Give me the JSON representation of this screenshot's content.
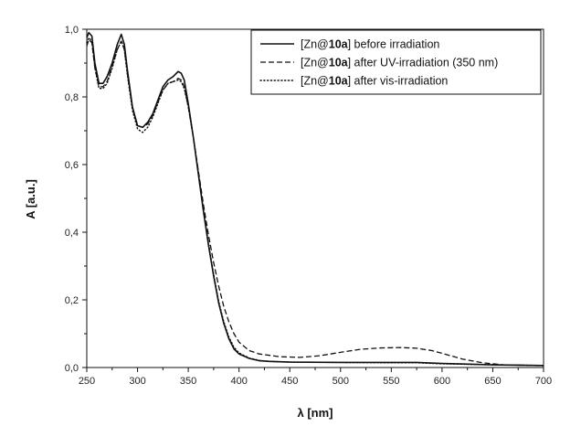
{
  "chart_data": {
    "type": "line",
    "title": "",
    "xlabel": "λ [nm]",
    "ylabel": "A [a.u.]",
    "xlim": [
      250,
      700
    ],
    "ylim": [
      0.0,
      1.0
    ],
    "xticks": [
      250,
      300,
      350,
      400,
      450,
      500,
      550,
      600,
      650,
      700
    ],
    "xtick_labels": [
      "250",
      "300",
      "350",
      "400",
      "450",
      "500",
      "550",
      "600",
      "650",
      "700"
    ],
    "yticks": [
      0.0,
      0.2,
      0.4,
      0.6,
      0.8,
      1.0
    ],
    "ytick_labels": [
      "0,0",
      "0,2",
      "0,4",
      "0,6",
      "0,8",
      "1,0"
    ],
    "grid": false,
    "legend_position": "top-right",
    "series": [
      {
        "name": "[Zn@10a] before irradiation",
        "legend_prefix": "[Zn@",
        "legend_bold": "10a",
        "legend_suffix": "] before irradiation",
        "style": "solid",
        "x": [
          250,
          252,
          255,
          258,
          262,
          266,
          270,
          275,
          280,
          284,
          287,
          290,
          295,
          300,
          305,
          310,
          315,
          320,
          325,
          330,
          335,
          340,
          343,
          346,
          350,
          355,
          360,
          365,
          370,
          375,
          380,
          385,
          390,
          395,
          400,
          410,
          420,
          430,
          450,
          500,
          550,
          575,
          600,
          650,
          700
        ],
        "y": [
          0.975,
          0.99,
          0.98,
          0.9,
          0.84,
          0.84,
          0.86,
          0.9,
          0.955,
          0.985,
          0.955,
          0.88,
          0.77,
          0.715,
          0.71,
          0.725,
          0.75,
          0.79,
          0.83,
          0.85,
          0.86,
          0.875,
          0.87,
          0.85,
          0.78,
          0.68,
          0.57,
          0.46,
          0.36,
          0.27,
          0.19,
          0.13,
          0.085,
          0.055,
          0.04,
          0.027,
          0.02,
          0.018,
          0.016,
          0.015,
          0.015,
          0.015,
          0.012,
          0.008,
          0.006
        ]
      },
      {
        "name": "[Zn@10a] after UV-irradiation (350 nm)",
        "legend_prefix": "[Zn@",
        "legend_bold": "10a",
        "legend_suffix": "] after UV-irradiation (350 nm)",
        "style": "dashed",
        "x": [
          250,
          252,
          255,
          258,
          262,
          266,
          270,
          275,
          280,
          284,
          287,
          290,
          295,
          300,
          305,
          310,
          315,
          320,
          325,
          330,
          335,
          340,
          343,
          346,
          350,
          355,
          360,
          365,
          370,
          375,
          380,
          385,
          390,
          395,
          400,
          410,
          420,
          440,
          460,
          480,
          500,
          520,
          540,
          560,
          575,
          590,
          600,
          620,
          640,
          660,
          700
        ],
        "y": [
          0.95,
          0.97,
          0.96,
          0.885,
          0.83,
          0.83,
          0.845,
          0.89,
          0.94,
          0.965,
          0.94,
          0.87,
          0.765,
          0.715,
          0.71,
          0.72,
          0.745,
          0.785,
          0.82,
          0.84,
          0.845,
          0.855,
          0.85,
          0.83,
          0.77,
          0.68,
          0.58,
          0.48,
          0.39,
          0.31,
          0.24,
          0.18,
          0.135,
          0.1,
          0.075,
          0.05,
          0.04,
          0.032,
          0.03,
          0.035,
          0.045,
          0.054,
          0.058,
          0.059,
          0.057,
          0.05,
          0.042,
          0.025,
          0.014,
          0.008,
          0.005
        ]
      },
      {
        "name": "[Zn@10a] after vis-irradiation",
        "legend_prefix": "[Zn@",
        "legend_bold": "10a",
        "legend_suffix": "] after vis-irradiation",
        "style": "dotted",
        "x": [
          250,
          252,
          255,
          258,
          262,
          266,
          270,
          275,
          280,
          284,
          287,
          290,
          295,
          300,
          305,
          310,
          315,
          320,
          325,
          330,
          335,
          340,
          343,
          346,
          350,
          355,
          360,
          365,
          370,
          375,
          380,
          385,
          390,
          395,
          400,
          410,
          420,
          430,
          450,
          500,
          550,
          575,
          600,
          650,
          700
        ],
        "y": [
          0.96,
          0.975,
          0.965,
          0.885,
          0.825,
          0.825,
          0.84,
          0.885,
          0.94,
          0.965,
          0.94,
          0.865,
          0.76,
          0.705,
          0.695,
          0.71,
          0.74,
          0.78,
          0.82,
          0.84,
          0.845,
          0.85,
          0.845,
          0.825,
          0.77,
          0.68,
          0.575,
          0.465,
          0.365,
          0.275,
          0.195,
          0.135,
          0.09,
          0.06,
          0.043,
          0.028,
          0.021,
          0.018,
          0.016,
          0.015,
          0.014,
          0.014,
          0.011,
          0.008,
          0.006
        ]
      }
    ]
  }
}
